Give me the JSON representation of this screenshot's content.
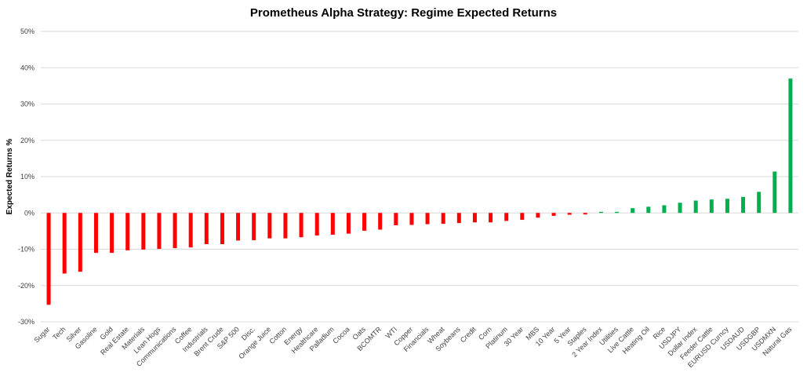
{
  "chart_data": {
    "type": "bar",
    "title": "Prometheus Alpha Strategy: Regime Expected Returns",
    "xlabel": "",
    "ylabel": "Expected Returns %",
    "ylim": [
      -30,
      50
    ],
    "yticks": [
      -30,
      -20,
      -10,
      0,
      10,
      20,
      30,
      40,
      50
    ],
    "ytick_labels": [
      "-30%",
      "-20%",
      "-10%",
      "0%",
      "10%",
      "20%",
      "30%",
      "40%",
      "50%"
    ],
    "grid": true,
    "colors": {
      "negative": "#ff0000",
      "positive": "#00b050"
    },
    "categories": [
      "Sugar",
      "Tech",
      "Silver",
      "Gasoline",
      "Gold",
      "Real Estate",
      "Materials",
      "Lean Hogs",
      "Communications",
      "Coffee",
      "Industrials",
      "Brent Crude",
      "S&P 500",
      "Disc.",
      "Orange Juice",
      "Cotton",
      "Energy",
      "Healthcare",
      "Palladium",
      "Cocoa",
      "Oats",
      "BCOMTR",
      "WTI",
      "Copper",
      "Financials",
      "Wheat",
      "Soybeans",
      "Credit",
      "Corn",
      "Platinum",
      "30 Year",
      "MBS",
      "10 Year",
      "5 Year",
      "Staples",
      "2 Year Index",
      "Utilities",
      "Live Cattle",
      "Heating Oil",
      "Rice",
      "USDJPY",
      "Dollar Index",
      "Feeder Cattle",
      "EURUSD Curncy",
      "USDAUD",
      "USDGBP",
      "USDMXN",
      "Natural Gas"
    ],
    "values": [
      -25.3,
      -16.7,
      -16.2,
      -11.0,
      -11.0,
      -10.3,
      -10.1,
      -9.9,
      -9.7,
      -9.5,
      -8.6,
      -8.6,
      -7.6,
      -7.5,
      -7.0,
      -7.0,
      -6.7,
      -6.2,
      -6.0,
      -5.7,
      -4.9,
      -4.6,
      -3.4,
      -3.3,
      -3.1,
      -3.0,
      -2.8,
      -2.6,
      -2.6,
      -2.2,
      -1.9,
      -1.3,
      -0.8,
      -0.5,
      -0.4,
      0.3,
      0.3,
      1.3,
      1.7,
      2.1,
      2.8,
      3.4,
      3.7,
      3.9,
      4.4,
      5.8,
      11.4,
      37.0
    ]
  }
}
